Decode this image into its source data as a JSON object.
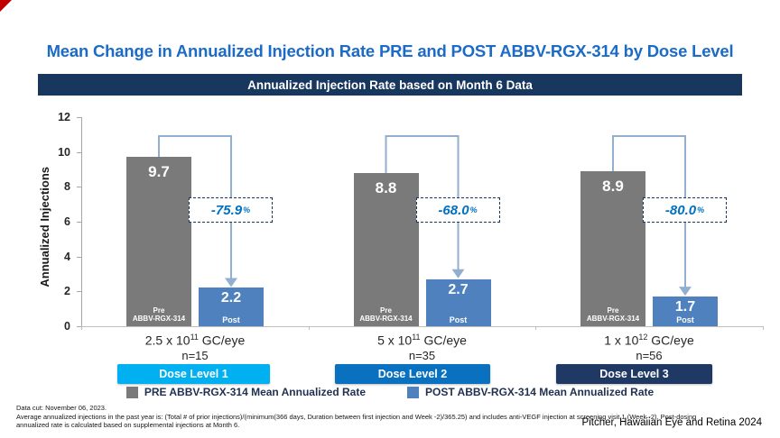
{
  "page": {
    "title": "Mean Change in Annualized Injection Rate PRE and POST ABBV-RGX-314 by Dose Level",
    "banner": "Annualized Injection Rate based on Month 6 Data"
  },
  "chart_data": {
    "type": "bar",
    "title": "Annualized Injection Rate based on Month 6 Data",
    "xlabel": "",
    "ylabel": "Annualized Injections",
    "ylim": [
      0,
      12
    ],
    "yticks": [
      0,
      2,
      4,
      6,
      8,
      10,
      12
    ],
    "grid": false,
    "categories": [
      "2.5 x 10^11 GC/eye (n=15)",
      "5 x 10^11 GC/eye (n=35)",
      "1 x 10^12 GC/eye (n=56)"
    ],
    "series": [
      {
        "name": "PRE ABBV-RGX-314 Mean Annualized Rate",
        "color": "#7a7a7a",
        "values": [
          9.7,
          8.8,
          8.9
        ]
      },
      {
        "name": "POST ABBV-RGX-314 Mean Annualized Rate",
        "color": "#4e81bd",
        "values": [
          2.2,
          2.7,
          1.7
        ]
      }
    ],
    "percent_changes": [
      "-75.9%",
      "-68.0%",
      "-80.0%"
    ],
    "pre_bar_inner_label_line1": "Pre",
    "pre_bar_inner_label_line2": "ABBV-RGX-314",
    "post_bar_inner_label": "Post",
    "groups": [
      {
        "dose_mantissa": "2.5 x 10",
        "dose_exponent": "11",
        "dose_suffix": " GC/eye",
        "n": "n=15",
        "pre": 9.7,
        "post": 2.2,
        "change": "-75.9%",
        "dose_button": "Dose Level 1",
        "dose_color": "#00b0f0"
      },
      {
        "dose_mantissa": "5 x 10",
        "dose_exponent": "11",
        "dose_suffix": " GC/eye",
        "n": "n=35",
        "pre": 8.8,
        "post": 2.7,
        "change": "-68.0%",
        "dose_button": "Dose Level 2",
        "dose_color": "#0a70c0"
      },
      {
        "dose_mantissa": "1 x 10",
        "dose_exponent": "12",
        "dose_suffix": " GC/eye",
        "n": "n=56",
        "pre": 8.9,
        "post": 1.7,
        "change": "-80.0%",
        "dose_button": "Dose Level 3",
        "dose_color": "#1f3864"
      }
    ]
  },
  "legend": {
    "items": [
      {
        "label": "PRE ABBV-RGX-314 Mean Annualized Rate",
        "color": "#7a7a7a"
      },
      {
        "label": "POST ABBV-RGX-314 Mean Annualized Rate",
        "color": "#4e81bd"
      }
    ]
  },
  "footnotes": {
    "line1": "Data cut: November 06, 2023.",
    "line2": "Average annualized injections in the past year is: (Total # of prior injections)/(minimum(366 days, Duration between first injection and Week -2)/365.25) and includes anti-VEGF injection at screening visit 1 (Week -2). Post-dosing",
    "line3": "annualized rate is calculated based on supplemental injections at Month 6."
  },
  "attribution": "Pitcher, Hawaiian Eye and Retina 2024"
}
